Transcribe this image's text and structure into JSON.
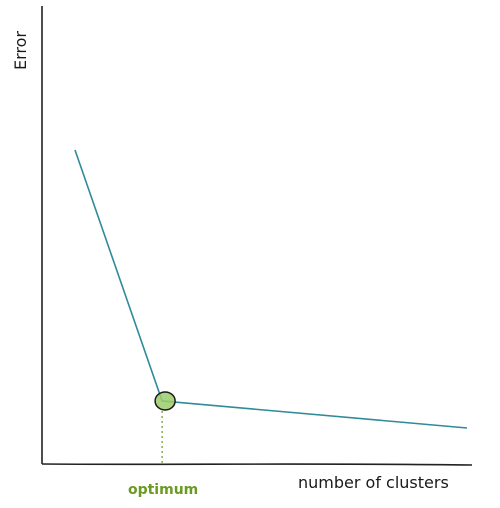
{
  "chart_data": {
    "type": "line",
    "title": "",
    "xlabel": "number of clusters",
    "ylabel": "Error",
    "series": [
      {
        "x": [
          1,
          3,
          10
        ],
        "y": [
          8.2,
          1.7,
          1.0
        ],
        "color": "#2f8a9a"
      }
    ],
    "annotations": [
      {
        "text": "optimum",
        "x": 3,
        "color": "#6a9a1f"
      }
    ],
    "grid": false,
    "ticks": "none"
  }
}
